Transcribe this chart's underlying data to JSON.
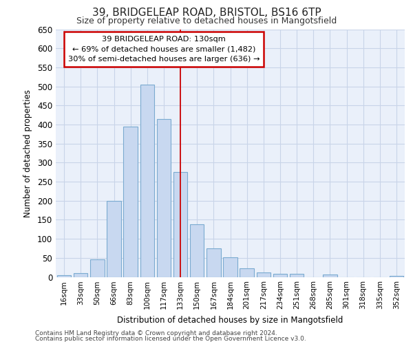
{
  "title1": "39, BRIDGELEAP ROAD, BRISTOL, BS16 6TP",
  "title2": "Size of property relative to detached houses in Mangotsfield",
  "xlabel": "Distribution of detached houses by size in Mangotsfield",
  "ylabel": "Number of detached properties",
  "categories": [
    "16sqm",
    "33sqm",
    "50sqm",
    "66sqm",
    "83sqm",
    "100sqm",
    "117sqm",
    "133sqm",
    "150sqm",
    "167sqm",
    "184sqm",
    "201sqm",
    "217sqm",
    "234sqm",
    "251sqm",
    "268sqm",
    "285sqm",
    "301sqm",
    "318sqm",
    "335sqm",
    "352sqm"
  ],
  "values": [
    5,
    10,
    46,
    200,
    395,
    505,
    415,
    275,
    138,
    75,
    52,
    22,
    12,
    9,
    8,
    0,
    6,
    0,
    0,
    0,
    3
  ],
  "bar_color": "#c8d8f0",
  "bar_edge_color": "#7aaad0",
  "grid_color": "#c8d4e8",
  "bg_color": "#eaf0fa",
  "vline_color": "#cc0000",
  "vline_x": 7,
  "annotation_title": "39 BRIDGELEAP ROAD: 130sqm",
  "annotation_line1": "← 69% of detached houses are smaller (1,482)",
  "annotation_line2": "30% of semi-detached houses are larger (636) →",
  "annotation_box_edge": "#cc0000",
  "ylim": [
    0,
    650
  ],
  "yticks": [
    0,
    50,
    100,
    150,
    200,
    250,
    300,
    350,
    400,
    450,
    500,
    550,
    600,
    650
  ],
  "footer1": "Contains HM Land Registry data © Crown copyright and database right 2024.",
  "footer2": "Contains public sector information licensed under the Open Government Licence v3.0."
}
